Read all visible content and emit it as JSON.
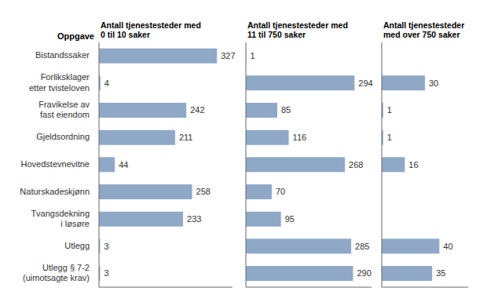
{
  "chart_data": [
    {
      "type": "bar",
      "orientation": "horizontal",
      "title": "Antall tjenestesteder med\n0 til 10 saker",
      "ylabel": "Oppgave",
      "categories": [
        "Bistandssaker",
        "Forliksklager\netter tvisteloven",
        "Fravikelse av\nfast eiendom",
        "Gjeldsordning",
        "Hovedstevnevitne",
        "Naturskadeskjønn",
        "Tvangsdekning\ni løsøre",
        "Utlegg",
        "Utlegg § 7-2\n(uimotsagte krav)"
      ],
      "values": [
        327,
        4,
        242,
        211,
        44,
        258,
        233,
        3,
        3
      ],
      "color": "#8fa8c8",
      "xlim": [
        0,
        370
      ],
      "data_labels": true,
      "tick_labels": "y"
    },
    {
      "type": "bar",
      "orientation": "horizontal",
      "title": "Antall tjenestesteder med\n11 til 750 saker",
      "categories": [
        "Bistandssaker",
        "Forliksklager\netter tvisteloven",
        "Fravikelse av\nfast eiendom",
        "Gjeldsordning",
        "Hovedstevnevitne",
        "Naturskadeskjønn",
        "Tvangsdekning\ni løsøre",
        "Utlegg",
        "Utlegg § 7-2\n(uimotsagte krav)"
      ],
      "values": [
        1,
        294,
        85,
        116,
        268,
        70,
        95,
        285,
        290
      ],
      "color": "#8fa8c8",
      "xlim": [
        0,
        340
      ],
      "data_labels": true,
      "tick_labels": false
    },
    {
      "type": "bar",
      "orientation": "horizontal",
      "title": "Antall tjenestesteder\nmed over 750 saker",
      "categories": [
        "Bistandssaker",
        "Forliksklager\netter tvisteloven",
        "Fravikelse av\nfast eiendom",
        "Gjeldsordning",
        "Hovedstevnevitne",
        "Naturskadeskjønn",
        "Tvangsdekning\ni løsøre",
        "Utlegg",
        "Utlegg § 7-2\n(uimotsagte krav)"
      ],
      "values": [
        0,
        30,
        1,
        1,
        16,
        0,
        0,
        40,
        35
      ],
      "color": "#8fa8c8",
      "xlim": [
        0,
        60
      ],
      "data_labels": true,
      "tick_labels": false
    }
  ]
}
